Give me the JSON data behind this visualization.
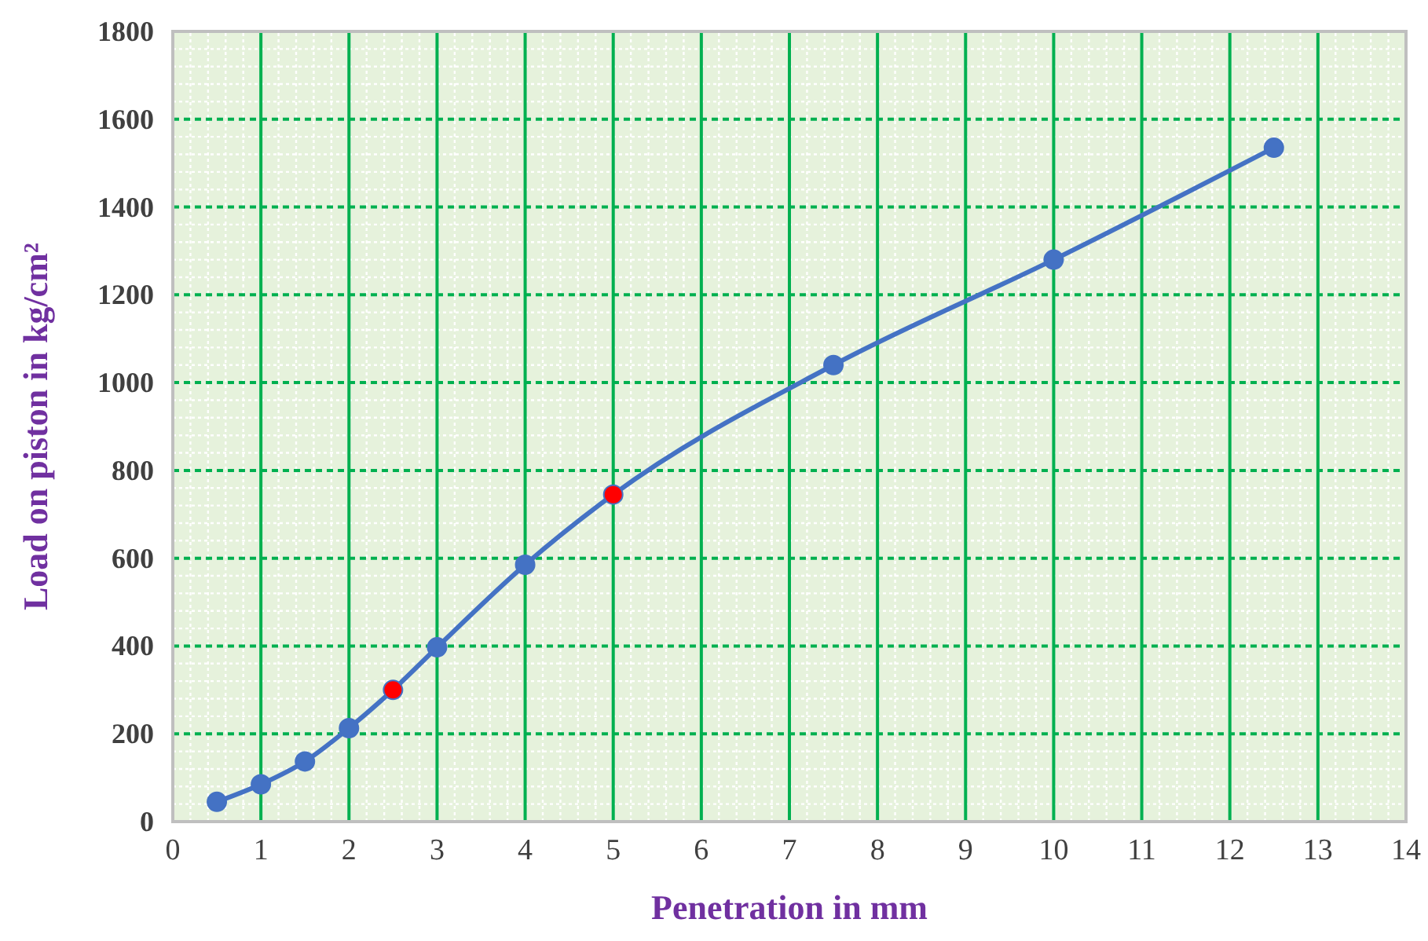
{
  "chart_data": {
    "type": "line",
    "xlabel": "Penetration in mm",
    "ylabel": "Load on piston in kg/cm²",
    "x": [
      0.5,
      1,
      1.5,
      2,
      2.5,
      3,
      4,
      5,
      7.5,
      10,
      12.5
    ],
    "series": [
      {
        "color": "#4472c4",
        "colors": [
          "#4472c4",
          "#4472c4",
          "#4472c4",
          "#4472c4",
          "#ff0000",
          "#4472c4",
          "#4472c4",
          "#ff0000",
          "#4472c4",
          "#4472c4",
          "#4472c4"
        ],
        "values": [
          45,
          85,
          137,
          213,
          300,
          397,
          585,
          745,
          1040,
          1280,
          1535
        ]
      }
    ],
    "xlim": [
      0,
      14
    ],
    "xticks": [
      0,
      1,
      2,
      3,
      4,
      5,
      6,
      7,
      8,
      9,
      10,
      11,
      12,
      13,
      14
    ],
    "ylim": [
      0,
      1800
    ],
    "yticks": [
      0,
      200,
      400,
      600,
      800,
      1000,
      1200,
      1400,
      1600,
      1800
    ],
    "grid": true,
    "marker": "circle",
    "line_style": "solid"
  }
}
